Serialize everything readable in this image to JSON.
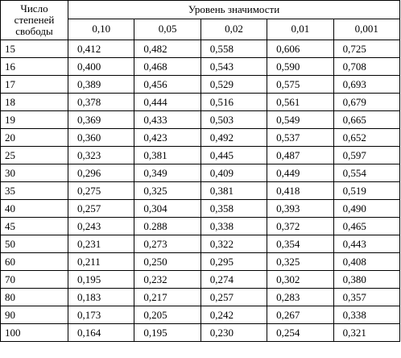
{
  "table": {
    "stub_header_lines": [
      "Число",
      "степеней",
      "свободы"
    ],
    "group_header": "Уровень значимости",
    "levels": [
      "0,10",
      "0,05",
      "0,02",
      "0,01",
      "0,001"
    ],
    "rows": [
      {
        "df": "15",
        "values": [
          "0,412",
          "0,482",
          "0,558",
          "0,606",
          "0,725"
        ]
      },
      {
        "df": "16",
        "values": [
          "0,400",
          "0,468",
          "0,543",
          "0,590",
          "0,708"
        ]
      },
      {
        "df": "17",
        "values": [
          "0,389",
          "0,456",
          "0,529",
          "0,575",
          "0,693"
        ]
      },
      {
        "df": "18",
        "values": [
          "0,378",
          "0,444",
          "0,516",
          "0,561",
          "0,679"
        ]
      },
      {
        "df": "19",
        "values": [
          "0,369",
          "0,433",
          "0,503",
          "0,549",
          "0,665"
        ]
      },
      {
        "df": "20",
        "values": [
          "0,360",
          "0,423",
          "0,492",
          "0,537",
          "0,652"
        ]
      },
      {
        "df": "25",
        "values": [
          "0,323",
          "0,381",
          "0,445",
          "0,487",
          "0,597"
        ]
      },
      {
        "df": "30",
        "values": [
          "0,296",
          "0,349",
          "0,409",
          "0,449",
          "0,554"
        ]
      },
      {
        "df": "35",
        "values": [
          "0,275",
          "0,325",
          "0,381",
          "0,418",
          "0,519"
        ]
      },
      {
        "df": "40",
        "values": [
          "0,257",
          "0,304",
          "0,358",
          "0,393",
          "0,490"
        ]
      },
      {
        "df": "45",
        "values": [
          "0,243",
          "0.288",
          "0,338",
          "0,372",
          "0,465"
        ]
      },
      {
        "df": "50",
        "values": [
          "0,231",
          "0,273",
          "0,322",
          "0,354",
          "0,443"
        ]
      },
      {
        "df": "60",
        "values": [
          "0,211",
          "0,250",
          "0,295",
          "0,325",
          "0,408"
        ]
      },
      {
        "df": "70",
        "values": [
          "0,195",
          "0,232",
          "0,274",
          "0,302",
          "0,380"
        ]
      },
      {
        "df": "80",
        "values": [
          "0,183",
          "0,217",
          "0,257",
          "0,283",
          "0,357"
        ]
      },
      {
        "df": "90",
        "values": [
          "0,173",
          "0,205",
          "0,242",
          "0,267",
          "0,338"
        ]
      },
      {
        "df": "100",
        "values": [
          "0,164",
          "0,195",
          "0,230",
          "0,254",
          "0,321"
        ]
      }
    ]
  }
}
